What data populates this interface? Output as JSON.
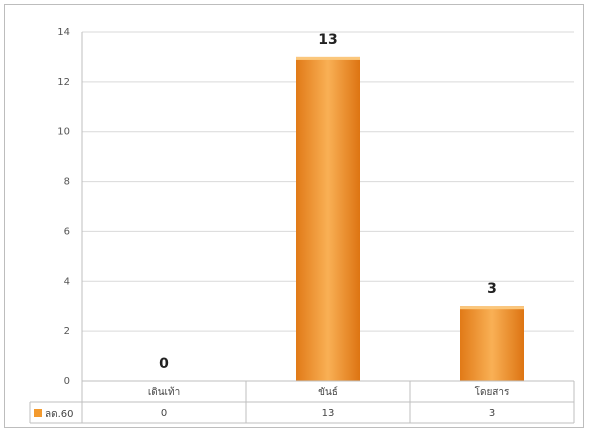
{
  "chart_data": {
    "type": "bar",
    "categories": [
      "เดินเท้า",
      "ขันธ์",
      "โดยสาร"
    ],
    "series": [
      {
        "name": "ลด.60",
        "values": [
          0,
          13,
          3
        ],
        "color": "#F39A2E"
      }
    ],
    "ylim": [
      0,
      14
    ],
    "yticks": [
      0,
      2,
      4,
      6,
      8,
      10,
      12,
      14
    ],
    "grid": true,
    "legend": "table-left",
    "title": "",
    "xlabel": "",
    "ylabel": ""
  }
}
